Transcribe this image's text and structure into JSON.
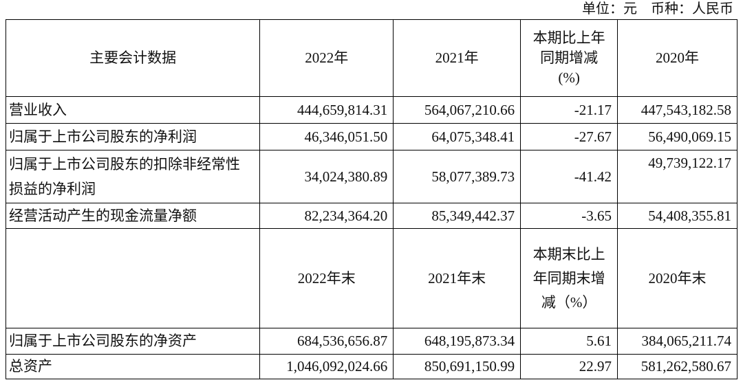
{
  "unit_note": "单位：元　币种：人民币",
  "header1": [
    "主要会计数据",
    "2022年",
    "2021年",
    "本期比上年同期增减(%)",
    "2020年"
  ],
  "rows1": [
    [
      "营业收入",
      "444,659,814.31",
      "564,067,210.66",
      "-21.17",
      "447,543,182.58"
    ],
    [
      "归属于上市公司股东的净利润",
      "46,346,051.50",
      "64,075,348.41",
      "-27.67",
      "56,490,069.15"
    ],
    [
      "归属于上市公司股东的扣除非经常性损益的净利润",
      "34,024,380.89",
      "58,077,389.73",
      "-41.42",
      "49,739,122.17"
    ],
    [
      "经营活动产生的现金流量净额",
      "82,234,364.20",
      "85,349,442.37",
      "-3.65",
      "54,408,355.81"
    ]
  ],
  "header2": [
    "",
    "2022年末",
    "2021年末",
    "本期末比上年同期末增减（%）",
    "2020年末"
  ],
  "rows2": [
    [
      "归属于上市公司股东的净资产",
      "684,536,656.87",
      "648,195,873.34",
      "5.61",
      "384,065,211.74"
    ],
    [
      "总资产",
      "1,046,092,024.66",
      "850,691,150.99",
      "22.97",
      "581,262,580.67"
    ]
  ]
}
